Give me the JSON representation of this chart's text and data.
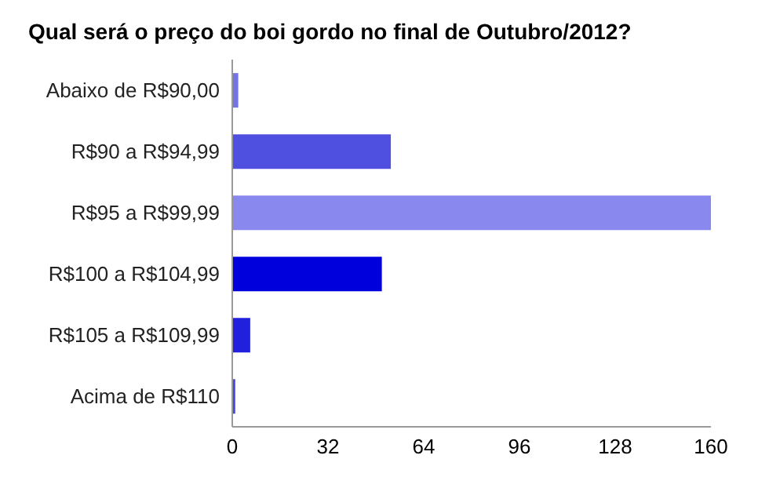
{
  "chart_data": {
    "type": "bar",
    "orientation": "horizontal",
    "title": "Qual será o preço do boi gordo no final de Outubro/2012?",
    "categories": [
      "Abaixo de R$90,00",
      "R$90 a R$94,99",
      "R$95 a R$99,99",
      "R$100 a R$104,99",
      "R$105 a R$109,99",
      "Acima de R$110"
    ],
    "values": [
      2,
      53,
      160,
      50,
      6,
      1
    ],
    "colors": [
      "#7474e6",
      "#5050e0",
      "#8888ee",
      "#0000dd",
      "#2020dd",
      "#4848e0"
    ],
    "xlim": [
      0,
      160
    ],
    "xticks": [
      0,
      32,
      64,
      96,
      128,
      160
    ],
    "grid": false
  }
}
